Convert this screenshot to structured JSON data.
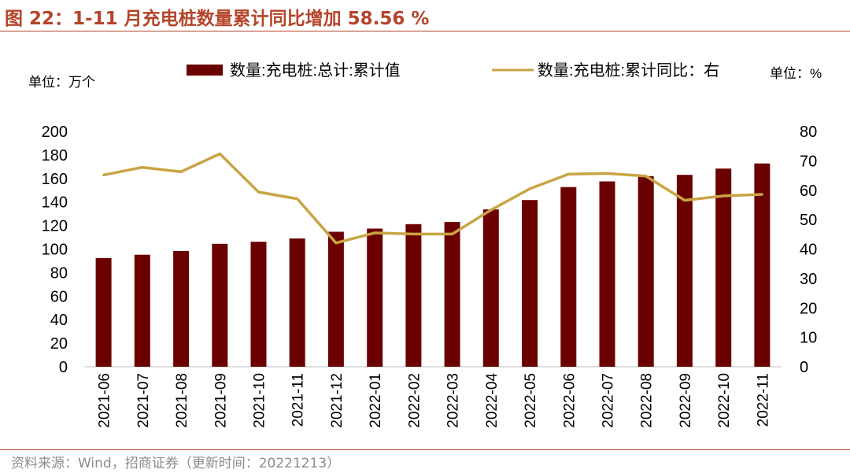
{
  "title": "图 22：1-11 月充电桩数量累计同比增加 58.56 %",
  "source": "资料来源：Wind，招商证券（更新时间：20221213）",
  "colors": {
    "bar": "#6b0000",
    "line": "#c9a445",
    "title": "#b5442a"
  },
  "chart_data": {
    "type": "bar+line",
    "categories": [
      "2021-06",
      "2021-07",
      "2021-08",
      "2021-09",
      "2021-10",
      "2021-11",
      "2021-12",
      "2022-01",
      "2022-02",
      "2022-03",
      "2022-04",
      "2022-05",
      "2022-06",
      "2022-07",
      "2022-08",
      "2022-09",
      "2022-10",
      "2022-11"
    ],
    "series": [
      {
        "name": "数量:充电桩:总计:累计值",
        "type": "bar",
        "axis": "left",
        "values": [
          92.4,
          95.2,
          98.4,
          104.5,
          106.2,
          109.0,
          114.7,
          117.4,
          121.2,
          123.0,
          133.7,
          141.7,
          152.7,
          157.5,
          162.0,
          163.1,
          168.4,
          172.8
        ]
      },
      {
        "name": "数量:充电桩:累计同比：右",
        "type": "line",
        "axis": "right",
        "values": [
          65.2,
          67.8,
          66.3,
          72.4,
          59.4,
          57.1,
          42.1,
          45.5,
          45.1,
          45.1,
          53.3,
          60.5,
          65.5,
          65.7,
          64.8,
          56.6,
          58.1,
          58.6
        ]
      }
    ],
    "left_axis": {
      "unit_label": "单位：万个",
      "ylim": [
        0,
        200
      ],
      "ticks": [
        "0",
        "20",
        "40",
        "60",
        "80",
        "100",
        "120",
        "140",
        "160",
        "180",
        "200"
      ]
    },
    "right_axis": {
      "unit_label": "单位：%",
      "ylim": [
        0,
        80
      ],
      "ticks": [
        "0",
        "10",
        "20",
        "30",
        "40",
        "50",
        "60",
        "70",
        "80"
      ]
    },
    "legend_position": "top",
    "grid": false
  }
}
